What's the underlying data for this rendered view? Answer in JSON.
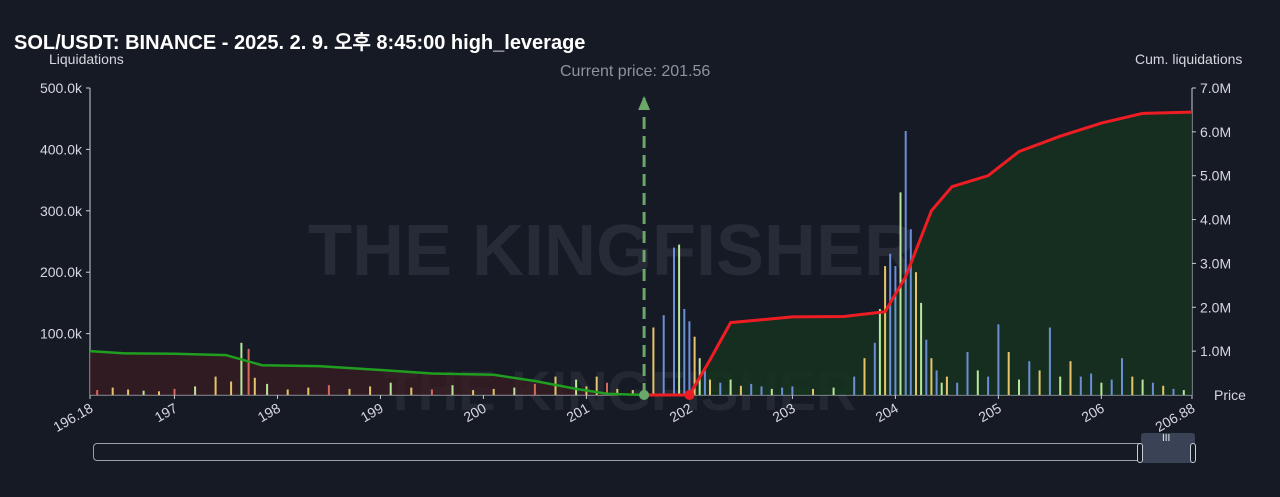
{
  "title": "SOL/USDT: BINANCE - 2025. 2. 9. 오후 8:45:00 high_leverage",
  "left_axis_title": "Liquidations",
  "right_axis_title": "Cum. liquidations",
  "price_axis_title": "Price",
  "current_price_label": "Current price: 201.56",
  "watermark_text": "THE KINGFISHER",
  "colors": {
    "background": "#161a25",
    "cum_short": "#ee1d23",
    "cum_long": "#1f9e1f",
    "current_price_line": "#6aa86a",
    "bar_yellow": "#e6c56a",
    "bar_green": "#b9e69a",
    "bar_blue": "#6b8fd6",
    "bar_red": "#d56a5a"
  },
  "chart_data": {
    "type": "bar",
    "x_axis": {
      "range": [
        196.18,
        206.88
      ],
      "ticks": [
        "196.18",
        "197",
        "198",
        "199",
        "200",
        "201",
        "202",
        "203",
        "204",
        "205",
        "206",
        "206.88"
      ]
    },
    "left_axis": {
      "label": "Liquidations",
      "range": [
        0,
        500000
      ],
      "ticks": [
        "100.0k",
        "200.0k",
        "300.0k",
        "400.0k",
        "500.0k"
      ]
    },
    "right_axis": {
      "label": "Cum. liquidations",
      "range": [
        0,
        7000000
      ],
      "ticks": [
        "1.0M",
        "2.0M",
        "3.0M",
        "4.0M",
        "5.0M",
        "6.0M",
        "7.0M"
      ]
    },
    "current_price": 201.56,
    "series": [
      {
        "name": "Cum. liquidations",
        "side": "long",
        "x": [
          196.18,
          196.5,
          197.0,
          197.5,
          197.85,
          198.4,
          199.0,
          199.5,
          200.1,
          200.5,
          200.9,
          201.2,
          201.56
        ],
        "y": [
          1000000,
          950000,
          940000,
          910000,
          680000,
          660000,
          570000,
          490000,
          460000,
          320000,
          140000,
          30000,
          0
        ]
      },
      {
        "name": "Cum. liquidations",
        "side": "short",
        "x": [
          201.56,
          202.0,
          202.2,
          202.4,
          203.0,
          203.5,
          203.9,
          204.1,
          204.35,
          204.55,
          204.9,
          205.2,
          205.6,
          206.0,
          206.4,
          206.88
        ],
        "y": [
          0,
          0,
          800000,
          1650000,
          1780000,
          1790000,
          1900000,
          2700000,
          4200000,
          4750000,
          5000000,
          5550000,
          5900000,
          6200000,
          6420000,
          6450000
        ]
      },
      {
        "name": "Liquidations",
        "x": [
          196.25,
          196.4,
          196.55,
          196.7,
          196.85,
          197.0,
          197.2,
          197.4,
          197.55,
          197.65,
          197.72,
          197.78,
          197.9,
          198.1,
          198.3,
          198.5,
          198.7,
          198.9,
          199.1,
          199.3,
          199.5,
          199.7,
          199.9,
          200.1,
          200.3,
          200.5,
          200.7,
          200.9,
          201.0,
          201.1,
          201.2,
          201.3,
          201.45,
          201.65,
          201.75,
          201.85,
          201.9,
          201.95,
          202.0,
          202.05,
          202.1,
          202.15,
          202.2,
          202.3,
          202.4,
          202.5,
          202.6,
          202.7,
          202.8,
          202.9,
          203.0,
          203.2,
          203.4,
          203.6,
          203.7,
          203.8,
          203.85,
          203.9,
          203.95,
          204.0,
          204.05,
          204.1,
          204.15,
          204.2,
          204.25,
          204.3,
          204.35,
          204.4,
          204.45,
          204.5,
          204.6,
          204.7,
          204.8,
          204.9,
          205.0,
          205.1,
          205.2,
          205.3,
          205.4,
          205.5,
          205.6,
          205.7,
          205.8,
          205.9,
          206.0,
          206.1,
          206.2,
          206.3,
          206.4,
          206.5,
          206.6,
          206.7,
          206.8
        ],
        "y": [
          8000,
          12000,
          9000,
          7000,
          6000,
          10000,
          14000,
          30000,
          22000,
          85000,
          75000,
          28000,
          18000,
          9000,
          12000,
          16000,
          10000,
          14000,
          20000,
          12000,
          9000,
          16000,
          8000,
          10000,
          12000,
          18000,
          30000,
          25000,
          14000,
          30000,
          20000,
          10000,
          8000,
          110000,
          130000,
          240000,
          245000,
          140000,
          120000,
          95000,
          60000,
          40000,
          25000,
          20000,
          25000,
          15000,
          18000,
          14000,
          10000,
          12000,
          14000,
          10000,
          12000,
          30000,
          60000,
          85000,
          140000,
          210000,
          230000,
          210000,
          330000,
          430000,
          270000,
          200000,
          150000,
          90000,
          60000,
          40000,
          20000,
          30000,
          20000,
          70000,
          40000,
          30000,
          115000,
          70000,
          25000,
          55000,
          40000,
          110000,
          30000,
          55000,
          30000,
          35000,
          20000,
          25000,
          60000,
          30000,
          25000,
          20000,
          15000,
          10000,
          8000
        ]
      }
    ]
  },
  "scrollbar": {
    "grip_label": "III"
  }
}
